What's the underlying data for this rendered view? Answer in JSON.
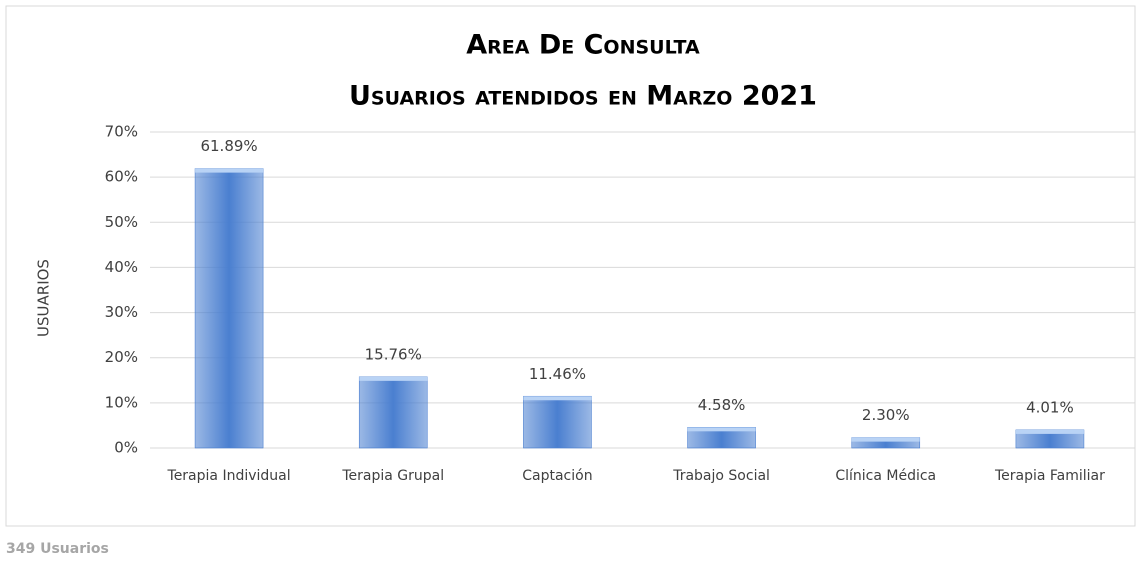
{
  "chart_data": {
    "type": "bar",
    "title": "Area De Consulta",
    "subtitle": "Usuarios atendidos en Marzo 2021",
    "y_label": "USUARIOS",
    "footnote": "349 Usuarios",
    "categories": [
      "Terapia Individual",
      "Terapia Grupal",
      "Captación",
      "Trabajo Social",
      "Clínica Médica",
      "Terapia Familiar"
    ],
    "values": [
      61.89,
      15.76,
      11.46,
      4.58,
      2.3,
      4.01
    ],
    "value_labels": [
      "61.89%",
      "15.76%",
      "11.46%",
      "4.58%",
      "2.30%",
      "4.01%"
    ],
    "color": "#4a7fd0",
    "ylim": [
      0,
      70
    ],
    "yticks": [
      {
        "value": 0,
        "label": "0%"
      },
      {
        "value": 10,
        "label": "10%"
      },
      {
        "value": 20,
        "label": "20%"
      },
      {
        "value": 30,
        "label": "30%"
      },
      {
        "value": 40,
        "label": "40%"
      },
      {
        "value": 50,
        "label": "50%"
      },
      {
        "value": 60,
        "label": "60%"
      },
      {
        "value": 70,
        "label": "70%"
      }
    ],
    "grid": true
  }
}
